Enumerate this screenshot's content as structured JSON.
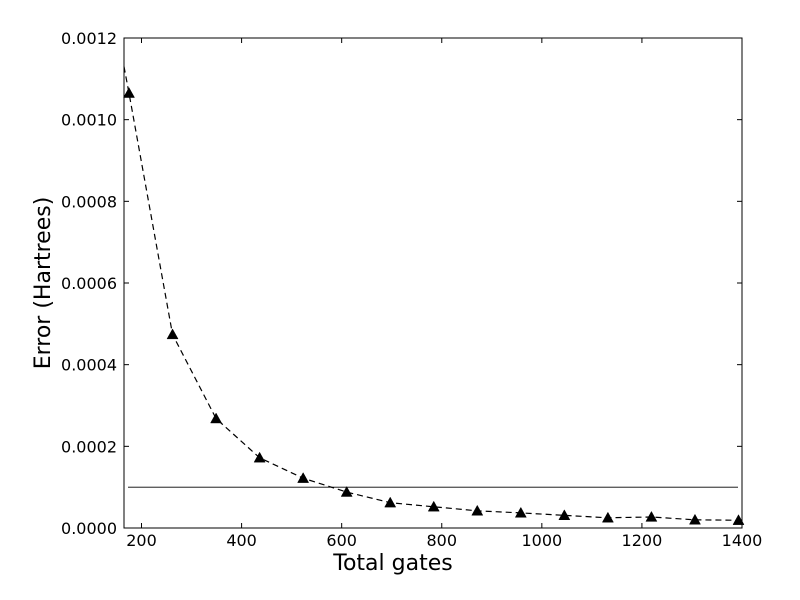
{
  "chart_data": {
    "type": "line",
    "title": "",
    "xlabel": "Total gates",
    "ylabel": "Error (Hartrees)",
    "xlim": [
      165,
      1400
    ],
    "ylim": [
      0,
      0.0012
    ],
    "x_ticks": [
      {
        "value": 200,
        "label": "200"
      },
      {
        "value": 400,
        "label": "400"
      },
      {
        "value": 600,
        "label": "600"
      },
      {
        "value": 800,
        "label": "800"
      },
      {
        "value": 1000,
        "label": "1000"
      },
      {
        "value": 1200,
        "label": "1200"
      },
      {
        "value": 1400,
        "label": "1400"
      }
    ],
    "y_ticks": [
      {
        "value": 0.0,
        "label": "0.0000"
      },
      {
        "value": 0.0002,
        "label": "0.0002"
      },
      {
        "value": 0.0004,
        "label": "0.0004"
      },
      {
        "value": 0.0006,
        "label": "0.0006"
      },
      {
        "value": 0.0008,
        "label": "0.0008"
      },
      {
        "value": 0.001,
        "label": "0.0010"
      },
      {
        "value": 0.0012,
        "label": "0.0012"
      }
    ],
    "grid": false,
    "series": [
      {
        "marker": "triangle",
        "color": "#000000",
        "points": [
          {
            "x": 175,
            "y": 0.001065
          },
          {
            "x": 262,
            "y": 0.000474
          },
          {
            "x": 349,
            "y": 0.000268
          },
          {
            "x": 436,
            "y": 0.000172
          },
          {
            "x": 523,
            "y": 0.000122
          },
          {
            "x": 610,
            "y": 8.8e-05
          },
          {
            "x": 697,
            "y": 6.2e-05
          },
          {
            "x": 784,
            "y": 5.2e-05
          },
          {
            "x": 871,
            "y": 4.2e-05
          },
          {
            "x": 958,
            "y": 3.7e-05
          },
          {
            "x": 1045,
            "y": 3.1e-05
          },
          {
            "x": 1132,
            "y": 2.5e-05
          },
          {
            "x": 1219,
            "y": 2.7e-05
          },
          {
            "x": 1306,
            "y": 2e-05
          },
          {
            "x": 1393,
            "y": 1.9e-05
          }
        ],
        "line_points": [
          {
            "x": 165,
            "y": 0.00113
          },
          {
            "x": 175,
            "y": 0.001065
          },
          {
            "x": 262,
            "y": 0.000474
          },
          {
            "x": 349,
            "y": 0.000268
          },
          {
            "x": 436,
            "y": 0.000172
          },
          {
            "x": 523,
            "y": 0.000122
          },
          {
            "x": 610,
            "y": 8.8e-05
          },
          {
            "x": 697,
            "y": 6.2e-05
          },
          {
            "x": 784,
            "y": 5.2e-05
          },
          {
            "x": 871,
            "y": 4.2e-05
          },
          {
            "x": 958,
            "y": 3.7e-05
          },
          {
            "x": 1045,
            "y": 3.1e-05
          },
          {
            "x": 1132,
            "y": 2.5e-05
          },
          {
            "x": 1219,
            "y": 2.7e-05
          },
          {
            "x": 1306,
            "y": 2e-05
          },
          {
            "x": 1393,
            "y": 1.9e-05
          }
        ]
      }
    ],
    "reference_line": {
      "y": 0.0001,
      "color": "#000000"
    }
  }
}
